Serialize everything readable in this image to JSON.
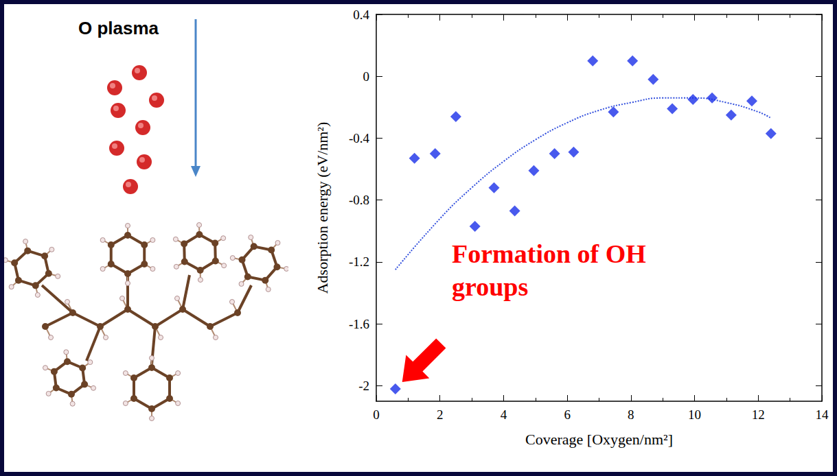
{
  "left_panel": {
    "label": "O plasma"
  },
  "chart_data": {
    "type": "scatter",
    "annotation": "Formation of OH groups",
    "x_label": "Coverage [Oxygen/nm²]",
    "y_label": "Adsorption energy (eV/nm²)",
    "xlim": [
      0,
      14
    ],
    "xticks": [
      0,
      2,
      4,
      6,
      8,
      10,
      12,
      14
    ],
    "ylim": [
      -2.1,
      0.4
    ],
    "yticks": [
      -2,
      -1.6,
      -1.2,
      -0.8,
      -0.4,
      0,
      0.4
    ],
    "grid": false,
    "series": [
      {
        "type": "scatter",
        "color": "#1a2fe8",
        "marker": "diamond",
        "x": [
          0.6,
          1.2,
          1.85,
          2.5,
          3.1,
          3.7,
          4.35,
          4.95,
          5.6,
          6.2,
          6.8,
          7.45,
          8.05,
          8.7,
          9.3,
          9.95,
          10.55,
          11.15,
          11.8,
          12.4
        ],
        "values": [
          -2.02,
          -0.53,
          -0.5,
          -0.26,
          -0.97,
          -0.72,
          -0.87,
          -0.61,
          -0.5,
          -0.49,
          0.1,
          -0.23,
          0.1,
          -0.02,
          -0.21,
          -0.15,
          -0.14,
          -0.25,
          -0.16,
          -0.37
        ]
      },
      {
        "type": "line",
        "color": "#3350dd",
        "line_style": "dotted",
        "x": [
          0.6,
          2,
          3,
          4,
          5,
          6,
          7,
          8,
          9,
          10,
          11,
          12,
          12.4
        ],
        "values": [
          -1.25,
          -0.92,
          -0.72,
          -0.55,
          -0.41,
          -0.3,
          -0.22,
          -0.17,
          -0.14,
          -0.14,
          -0.17,
          -0.23,
          -0.27
        ]
      }
    ]
  }
}
